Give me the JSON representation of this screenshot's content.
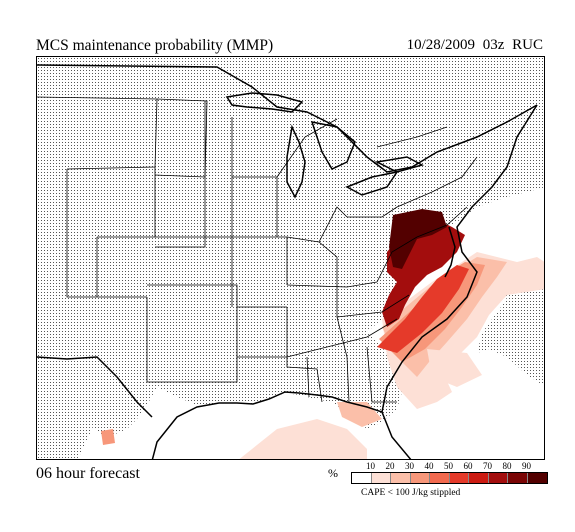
{
  "header": {
    "title": "MCS maintenance probability (MMP)",
    "date": "10/28/2009",
    "hour": "03z",
    "model": "RUC"
  },
  "footer": {
    "forecast_label": "06 hour forecast",
    "unit_symbol": "%",
    "stipple_note": "CAPE < 100 J/kg stippled"
  },
  "legend": {
    "ticks": [
      "10",
      "20",
      "30",
      "40",
      "50",
      "60",
      "70",
      "80",
      "90"
    ],
    "colors": [
      "#ffffff",
      "#fde0d6",
      "#fbbfa9",
      "#f7977a",
      "#f26a4f",
      "#e53a2a",
      "#cc1b12",
      "#a30d0d",
      "#7a0505",
      "#530000"
    ]
  },
  "map": {
    "stipple_color": "#555555",
    "border_color": "#000000"
  }
}
